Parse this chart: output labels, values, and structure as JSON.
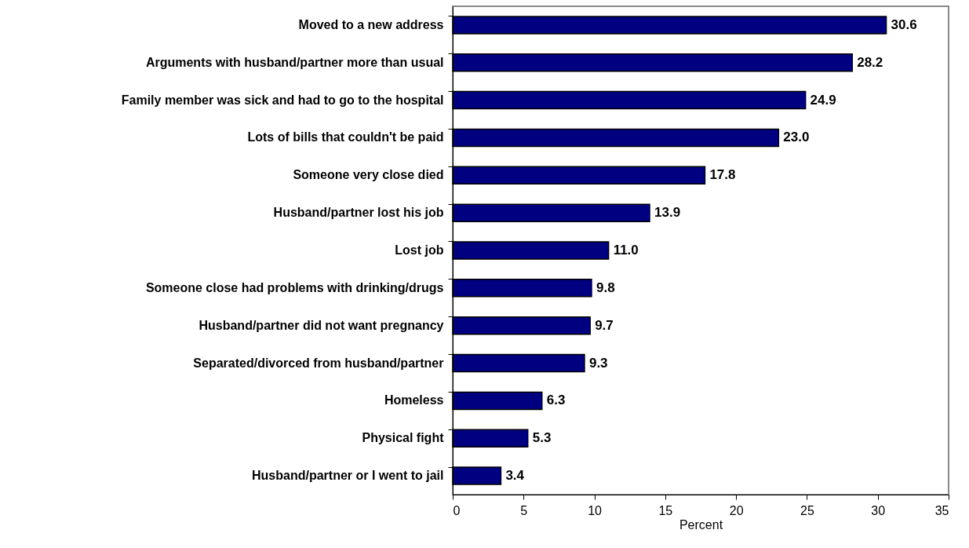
{
  "chart_data": {
    "type": "bar",
    "orientation": "horizontal",
    "xlabel": "Percent",
    "categories": [
      "Moved to a new address",
      "Arguments with husband/partner more than usual",
      "Family member was sick and had to go to the hospital",
      "Lots of bills that couldn't be paid",
      "Someone very close died",
      "Husband/partner lost his job",
      "Lost job",
      "Someone close had problems with drinking/drugs",
      "Husband/partner did not want pregnancy",
      "Separated/divorced from husband/partner",
      "Homeless",
      "Physical fight",
      "Husband/partner or I went to jail"
    ],
    "values": [
      30.6,
      28.2,
      24.9,
      23.0,
      17.8,
      13.9,
      11.0,
      9.8,
      9.7,
      9.3,
      6.3,
      5.3,
      3.4
    ],
    "value_labels": [
      "30.6",
      "28.2",
      "24.9",
      "23.0",
      "17.8",
      "13.9",
      "11.0",
      "9.8",
      "9.7",
      "9.3",
      "6.3",
      "5.3",
      "3.4"
    ],
    "color": "#000080",
    "xlim": [
      0,
      35
    ],
    "xticks": [
      0,
      5,
      10,
      15,
      20,
      25,
      30,
      35
    ],
    "grid": false
  }
}
